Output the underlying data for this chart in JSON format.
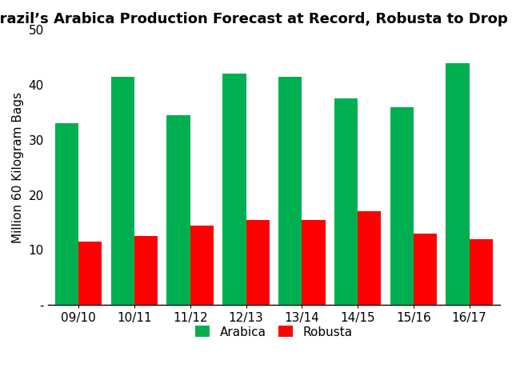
{
  "title": "Brazil’s Arabica Production Forecast at Record, Robusta to Drop Again",
  "ylabel": "Million 60 Kilogram Bags",
  "categories": [
    "09/10",
    "10/11",
    "11/12",
    "12/13",
    "13/14",
    "14/15",
    "15/16",
    "16/17"
  ],
  "arabica": [
    33,
    41.5,
    34.5,
    42,
    41.5,
    37.5,
    36,
    44
  ],
  "robusta": [
    11.5,
    12.5,
    14.5,
    15.5,
    15.5,
    17,
    13,
    12
  ],
  "arabica_color": "#00B050",
  "robusta_color": "#FF0000",
  "ylim_min": 0,
  "ylim_max": 50,
  "yticks": [
    0,
    10,
    20,
    30,
    40,
    50
  ],
  "ytick_labels": [
    "-",
    "10",
    "20",
    "30",
    "40",
    "50"
  ],
  "legend_labels": [
    "Arabica",
    "Robusta"
  ],
  "bar_width": 0.42,
  "title_fontsize": 13,
  "label_fontsize": 11,
  "tick_fontsize": 11,
  "legend_fontsize": 11
}
